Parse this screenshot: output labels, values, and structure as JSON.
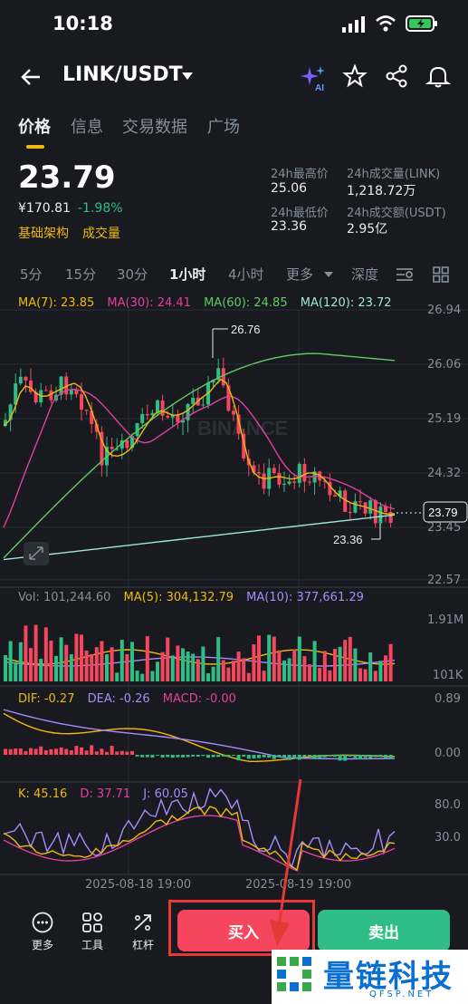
{
  "status_bar": {
    "time": "10:18"
  },
  "header": {
    "pair": "LINK/USDT"
  },
  "tabs": [
    "价格",
    "信息",
    "交易数据",
    "广场"
  ],
  "ticker": {
    "last_price": "23.79",
    "fiat_price": "¥170.81",
    "change": "-1.98%",
    "tag_fundamentals": "基础架构",
    "tag_volume": "成交量",
    "high_label": "24h最高价",
    "high": "25.06",
    "low_label": "24h最低价",
    "low": "23.36",
    "vol_link_label": "24h成交量(LINK)",
    "vol_link": "1,218.72万",
    "vol_usdt_label": "24h成交额(USDT)",
    "vol_usdt": "2.95亿"
  },
  "intervals": [
    "5分",
    "15分",
    "30分",
    "1小时",
    "4小时",
    "更多",
    "深度"
  ],
  "ma_legend": {
    "ma7": "MA(7): 23.85",
    "ma30": "MA(30): 24.41",
    "ma60": "MA(60): 24.85",
    "ma120": "MA(120): 23.72"
  },
  "price_axis": [
    "26.94",
    "26.06",
    "25.19",
    "24.32",
    "23.45",
    "22.57"
  ],
  "price_tag": "23.79",
  "annot_high": "26.76",
  "annot_low": "23.36",
  "watermark": "BINANCE",
  "volume_legend": {
    "vol": "Vol: 101,244.60",
    "ma5": "MA(5): 304,132.79",
    "ma10": "MA(10): 377,661.29"
  },
  "volume_axis": [
    "1.91M",
    "101K"
  ],
  "macd_legend": {
    "dif": "DIF: -0.27",
    "dea": "DEA: -0.26",
    "macd": "MACD: -0.00"
  },
  "macd_axis": [
    "0.89",
    "0.00"
  ],
  "kdj_legend": {
    "k": "K: 45.16",
    "d": "D: 37.71",
    "j": "J: 60.05"
  },
  "kdj_axis": [
    "80.0",
    "30.0"
  ],
  "time_axis": [
    "2025-08-18 19:00",
    "2025-08-19 19:00"
  ],
  "bottom_bar": {
    "more": "更多",
    "tools": "工具",
    "leverage": "杠杆",
    "buy": "买入",
    "sell": "卖出"
  },
  "site_watermark": {
    "name": "量链科技",
    "domain": "QFSP.NET"
  },
  "colors": {
    "up": "#2ebd85",
    "down": "#f6465d",
    "accent": "#f0b90b",
    "ma7": "#f0b90b",
    "ma30": "#e040a0",
    "ma60": "#5fcc5f",
    "ma120": "#9ee6d8"
  }
}
